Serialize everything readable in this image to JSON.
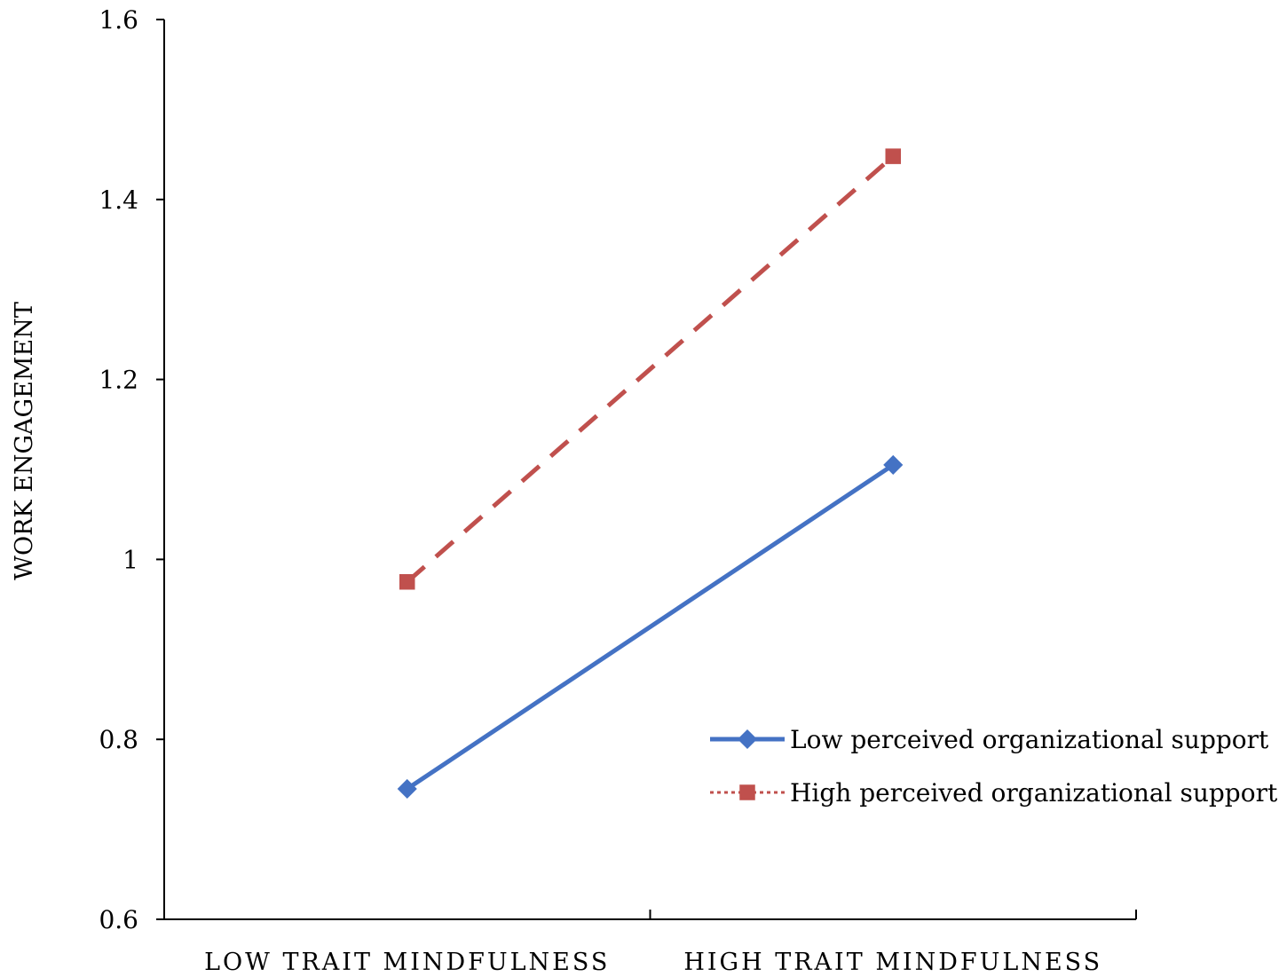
{
  "chart_data": {
    "type": "line",
    "title": "",
    "xlabel": "",
    "ylabel": "WORK ENGAGEMENT",
    "categories": [
      "LOW TRAIT MINDFULNESS",
      "HIGH TRAIT MINDFULNESS"
    ],
    "ylim": [
      0.6,
      1.6
    ],
    "yticks": [
      0.6,
      0.8,
      1,
      1.2,
      1.4,
      1.6
    ],
    "ytick_labels": [
      "0.6",
      "0.8",
      "1",
      "1.2",
      "1.4",
      "1.6"
    ],
    "grid": false,
    "legend_position": "bottom-right",
    "series": [
      {
        "name": "Low perceived organizational support",
        "values": [
          0.745,
          1.105
        ],
        "color": "#4472C4",
        "line_style": "solid",
        "marker": "diamond"
      },
      {
        "name": "High perceived organizational support",
        "values": [
          0.975,
          1.448
        ],
        "color": "#C0504D",
        "line_style": "dashed",
        "marker": "square"
      }
    ]
  }
}
